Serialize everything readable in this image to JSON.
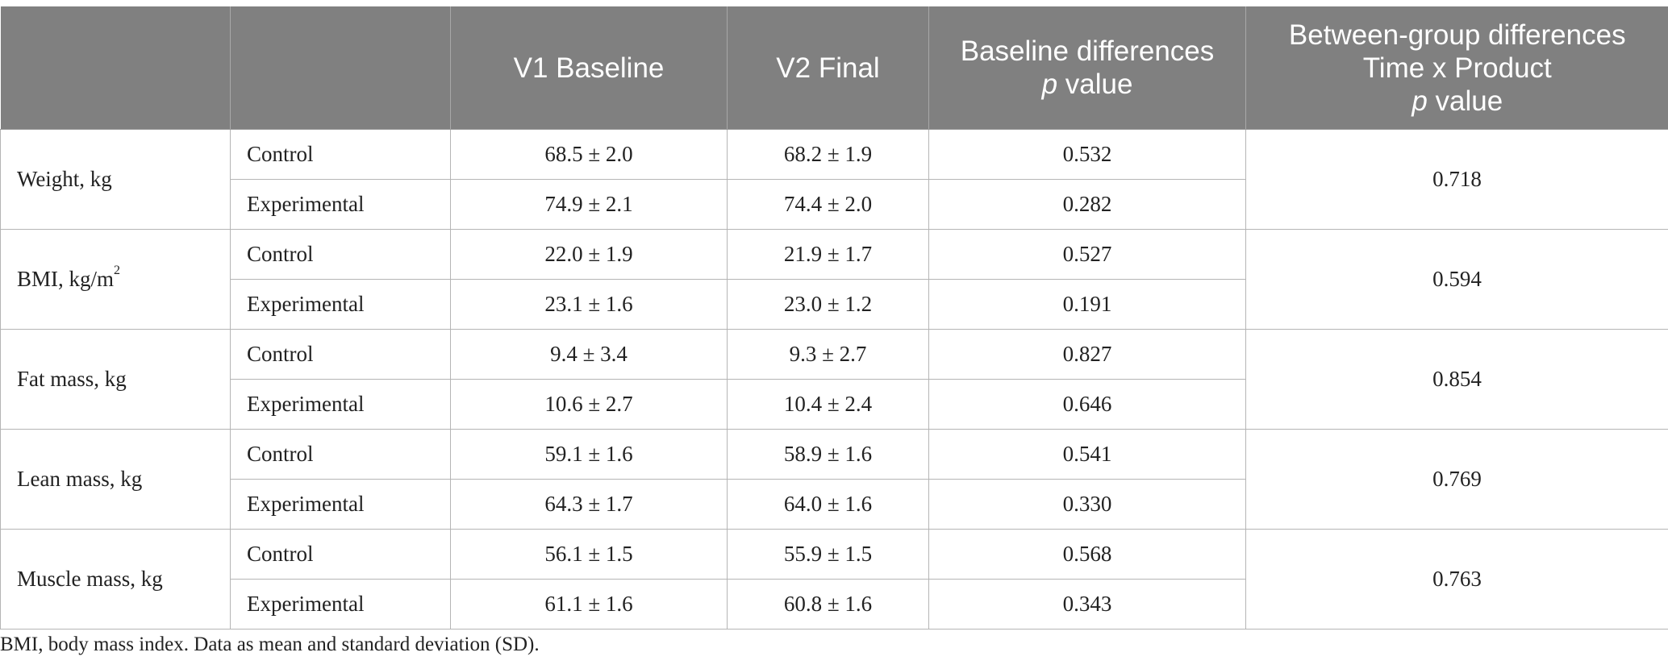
{
  "header": {
    "col1": "",
    "col2": "",
    "col3": "V1 Baseline",
    "col4": "V2 Final",
    "col5_line1": "Baseline differences",
    "col5_italic": "p",
    "col5_line2_rest": " value",
    "col6_line1": "Between-group differences",
    "col6_line2": "Time x Product",
    "col6_italic": "p",
    "col6_line3_rest": " value"
  },
  "rows": [
    {
      "label": "Weight, kg",
      "label_sup": "",
      "control": {
        "group": "Control",
        "v1": "68.5 ± 2.0",
        "v2": "68.2 ± 1.9",
        "p": "0.532"
      },
      "experimental": {
        "group": "Experimental",
        "v1": "74.9 ± 2.1",
        "v2": "74.4 ± 2.0",
        "p": "0.282"
      },
      "between": "0.718"
    },
    {
      "label": "BMI, kg/m",
      "label_sup": "2",
      "control": {
        "group": "Control",
        "v1": "22.0 ± 1.9",
        "v2": "21.9 ± 1.7",
        "p": "0.527"
      },
      "experimental": {
        "group": "Experimental",
        "v1": "23.1 ± 1.6",
        "v2": "23.0 ± 1.2",
        "p": "0.191"
      },
      "between": "0.594"
    },
    {
      "label": "Fat mass, kg",
      "label_sup": "",
      "control": {
        "group": "Control",
        "v1": "9.4 ± 3.4",
        "v2": "9.3 ± 2.7",
        "p": "0.827"
      },
      "experimental": {
        "group": "Experimental",
        "v1": "10.6 ± 2.7",
        "v2": "10.4 ± 2.4",
        "p": "0.646"
      },
      "between": "0.854"
    },
    {
      "label": "Lean mass, kg",
      "label_sup": "",
      "control": {
        "group": "Control",
        "v1": "59.1 ± 1.6",
        "v2": "58.9 ± 1.6",
        "p": "0.541"
      },
      "experimental": {
        "group": "Experimental",
        "v1": "64.3 ± 1.7",
        "v2": "64.0 ± 1.6",
        "p": "0.330"
      },
      "between": "0.769"
    },
    {
      "label": "Muscle mass, kg",
      "label_sup": "",
      "control": {
        "group": "Control",
        "v1": "56.1 ± 1.5",
        "v2": "55.9 ± 1.5",
        "p": "0.568"
      },
      "experimental": {
        "group": "Experimental",
        "v1": "61.1 ± 1.6",
        "v2": "60.8 ± 1.6",
        "p": "0.343"
      },
      "between": "0.763"
    }
  ],
  "footnote": "BMI, body mass index. Data as mean and standard deviation (SD).",
  "colors": {
    "header_bg": "#808080",
    "header_text": "#ffffff",
    "border": "#b5b5b5"
  }
}
